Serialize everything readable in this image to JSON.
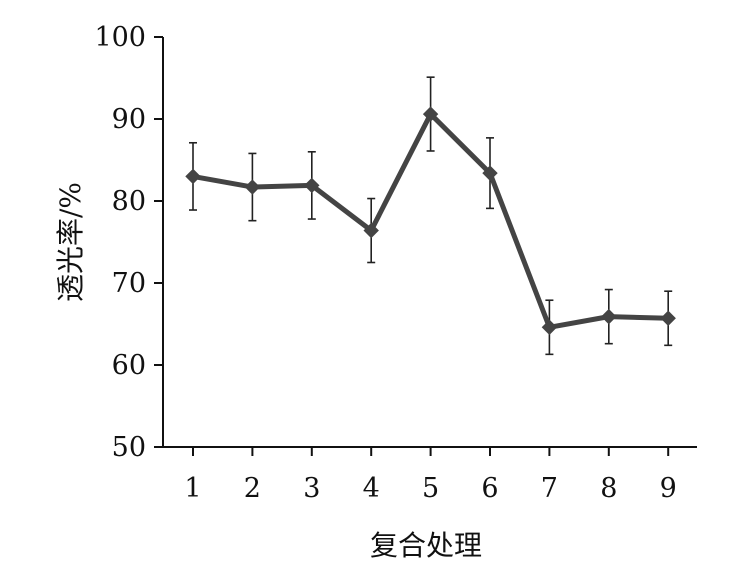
{
  "chart_data": {
    "type": "line",
    "title": "",
    "xlabel": "复合处理",
    "ylabel": "透光率/%",
    "categories": [
      "1",
      "2",
      "3",
      "4",
      "5",
      "6",
      "7",
      "8",
      "9"
    ],
    "series": [
      {
        "values": [
          83.0,
          81.7,
          81.9,
          76.4,
          90.6,
          83.4,
          64.6,
          65.9,
          65.7
        ],
        "error": [
          4.1,
          4.1,
          4.1,
          3.9,
          4.5,
          4.3,
          3.3,
          3.3,
          3.3
        ],
        "marker": "diamond",
        "color": "#444444"
      }
    ],
    "ylim": [
      50,
      100
    ],
    "yticks": [
      50,
      60,
      70,
      80,
      90,
      100
    ],
    "grid": false,
    "legend": "none"
  }
}
